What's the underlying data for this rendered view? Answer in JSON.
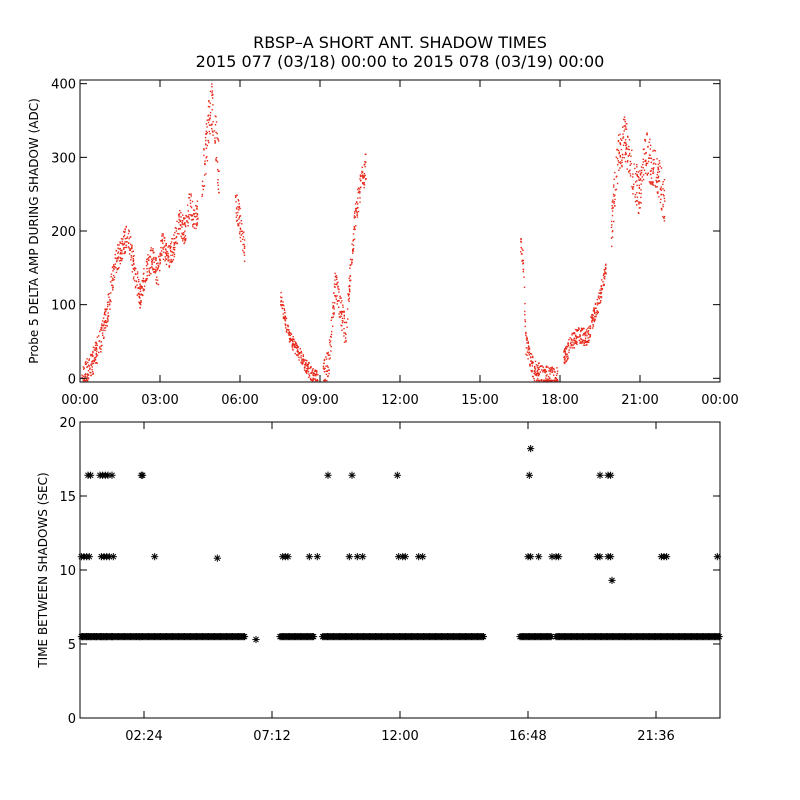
{
  "title_line1": "RBSP–A SHORT ANT. SHADOW TIMES",
  "title_line2": "2015 077 (03/18) 00:00 to 2015 078 (03/19) 00:00",
  "colors": {
    "points": "#e8281a",
    "stars": "#000000",
    "axes": "#000000"
  },
  "chart_data": [
    {
      "type": "scatter",
      "name": "delta-amp",
      "ylabel": "Probe 5 DELTA AMP DURING SHADOW (ADC)",
      "xlabel": "",
      "xlim": [
        0,
        24
      ],
      "ylim": [
        -5,
        405
      ],
      "x_ticks": [
        0,
        3,
        6,
        9,
        12,
        15,
        18,
        21,
        24
      ],
      "x_tick_labels": [
        "00:00",
        "03:00",
        "06:00",
        "09:00",
        "12:00",
        "15:00",
        "18:00",
        "21:00",
        "00:00"
      ],
      "y_ticks": [
        0,
        100,
        200,
        300,
        400
      ],
      "y_tick_labels": [
        "0",
        "100",
        "200",
        "300",
        "400"
      ],
      "segments": [
        {
          "x": [
            0.05,
            0.35,
            0.7,
            1.0,
            1.3,
            1.55,
            1.75,
            2.0,
            2.25,
            2.45,
            2.7,
            2.9,
            3.05,
            3.3,
            3.5,
            3.7,
            3.9,
            4.1,
            4.25,
            4.4
          ],
          "y": [
            0,
            15,
            45,
            90,
            160,
            175,
            200,
            150,
            110,
            150,
            165,
            140,
            185,
            165,
            180,
            215,
            200,
            240,
            215,
            230
          ],
          "spread": 18
        },
        {
          "x": [
            4.55,
            4.75,
            4.9,
            5.05,
            5.2
          ],
          "y": [
            260,
            330,
            380,
            330,
            280
          ],
          "spread": 35
        },
        {
          "x": [
            5.8,
            5.95,
            6.05,
            6.15
          ],
          "y": [
            240,
            220,
            195,
            175
          ],
          "spread": 20
        },
        {
          "x": [
            7.5,
            7.8,
            8.1,
            8.4,
            8.7,
            8.9
          ],
          "y": [
            110,
            60,
            40,
            20,
            5,
            0
          ],
          "spread": 10
        },
        {
          "x": [
            9.1,
            9.3,
            9.55,
            9.8,
            9.95,
            10.1,
            10.3,
            10.5,
            10.7
          ],
          "y": [
            5,
            20,
            130,
            85,
            60,
            140,
            220,
            260,
            290
          ],
          "spread": 20
        },
        {
          "x": [
            16.5,
            16.6,
            16.7,
            16.85,
            17.0,
            17.3,
            17.6,
            17.9
          ],
          "y": [
            180,
            160,
            45,
            30,
            10,
            5,
            2,
            0
          ],
          "spread": 15
        },
        {
          "x": [
            18.1,
            18.4,
            18.7,
            19.0,
            19.2,
            19.4,
            19.55,
            19.7
          ],
          "y": [
            25,
            50,
            60,
            55,
            80,
            100,
            125,
            150
          ],
          "spread": 12
        },
        {
          "x": [
            19.9,
            20.15,
            20.4,
            20.7,
            20.95,
            21.2,
            21.4,
            21.7,
            21.9
          ],
          "y": [
            200,
            300,
            330,
            280,
            250,
            310,
            290,
            270,
            240
          ],
          "spread": 30
        }
      ]
    },
    {
      "type": "scatter",
      "name": "time-between-shadows",
      "ylabel": "TIME BETWEEN SHADOWS (SEC)",
      "xlabel": "",
      "xlim": [
        0,
        24
      ],
      "ylim": [
        0,
        20
      ],
      "x_ticks": [
        2.4,
        7.2,
        12.0,
        16.8,
        21.6
      ],
      "x_tick_labels": [
        "02:24",
        "07:12",
        "12:00",
        "16:48",
        "21:36"
      ],
      "y_ticks": [
        0,
        5,
        10,
        15,
        20
      ],
      "y_tick_labels": [
        "0",
        "5",
        "10",
        "15",
        "20"
      ],
      "bands": [
        {
          "y": 5.5,
          "ranges": [
            [
              0.05,
              6.2
            ],
            [
              7.5,
              8.8
            ],
            [
              9.1,
              15.15
            ],
            [
              16.5,
              17.7
            ],
            [
              17.85,
              24.0
            ]
          ]
        }
      ],
      "points": [
        {
          "x": [
            0.1,
            0.25,
            0.4,
            0.6,
            0.8,
            0.9,
            1.0,
            1.2,
            2.25,
            6.6
          ],
          "y": [
            5.5,
            5.5,
            5.5,
            5.5,
            5.5,
            5.5,
            5.5,
            5.5,
            5.5,
            5.3
          ]
        },
        {
          "x": [
            0.05,
            0.15,
            0.25,
            0.35,
            0.8,
            0.9,
            1.0,
            1.1,
            1.25
          ],
          "y": [
            10.9,
            10.9,
            10.9,
            10.9,
            10.9,
            10.9,
            10.9,
            10.9,
            10.9
          ]
        },
        {
          "x": [
            0.3,
            0.4,
            0.75,
            0.85,
            0.95,
            1.05,
            1.2
          ],
          "y": [
            16.4,
            16.4,
            16.4,
            16.4,
            16.4,
            16.4,
            16.4
          ]
        },
        {
          "x": [
            2.3,
            2.35,
            2.8,
            5.15
          ],
          "y": [
            16.4,
            16.4,
            10.9,
            10.8
          ]
        },
        {
          "x": [
            7.6,
            7.7,
            7.8,
            8.6,
            8.9,
            9.3,
            10.1,
            10.4,
            10.6,
            11.95,
            12.1,
            12.2,
            12.7,
            12.85
          ],
          "y": [
            10.9,
            10.9,
            10.9,
            10.9,
            10.9,
            16.4,
            10.9,
            10.9,
            10.9,
            10.9,
            10.9,
            10.9,
            10.9,
            10.9
          ]
        },
        {
          "x": [
            10.2,
            11.9
          ],
          "y": [
            16.4,
            16.4
          ]
        },
        {
          "x": [
            16.8,
            16.9,
            17.2,
            17.7,
            17.85,
            17.95
          ],
          "y": [
            10.9,
            10.9,
            10.9,
            10.9,
            10.9,
            10.9
          ]
        },
        {
          "x": [
            16.85,
            16.9
          ],
          "y": [
            16.4,
            18.2
          ]
        },
        {
          "x": [
            19.5,
            19.8,
            19.9,
            19.95
          ],
          "y": [
            16.4,
            16.4,
            16.4,
            9.3
          ]
        },
        {
          "x": [
            19.4,
            19.5,
            19.8,
            19.9,
            21.8,
            21.9,
            22.0,
            23.9
          ],
          "y": [
            10.9,
            10.9,
            10.9,
            10.9,
            10.9,
            10.9,
            10.9,
            10.9
          ]
        }
      ]
    }
  ]
}
